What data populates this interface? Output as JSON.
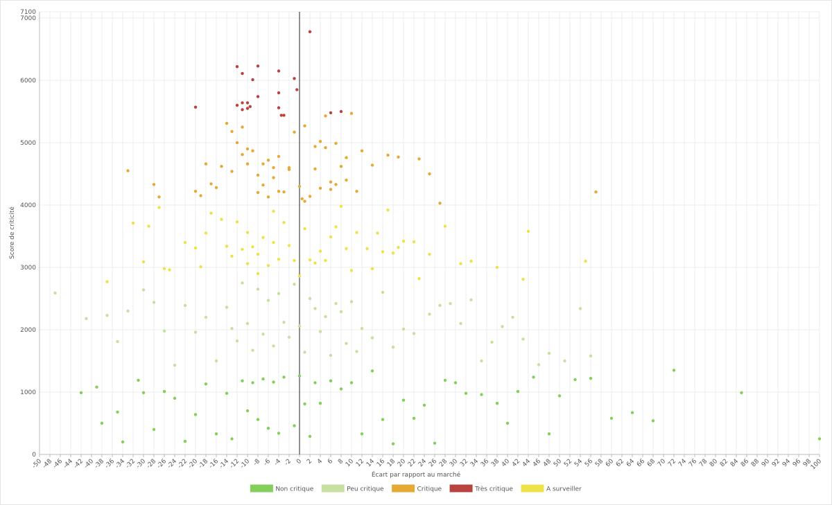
{
  "chart_data": {
    "type": "scatter",
    "x_label": "Écart par rapport au marché",
    "y_label": "Score de criticité",
    "xlim": [
      -50,
      100
    ],
    "ylim": [
      0,
      7100
    ],
    "xticks": [
      -50,
      -48,
      -46,
      -44,
      -42,
      -40,
      -38,
      -36,
      -34,
      -32,
      -30,
      -28,
      -26,
      -24,
      -22,
      -20,
      -18,
      -16,
      -14,
      -12,
      -10,
      -8,
      -6,
      -4,
      -2,
      0,
      2,
      4,
      6,
      8,
      10,
      12,
      14,
      16,
      18,
      20,
      22,
      24,
      26,
      28,
      30,
      32,
      34,
      36,
      38,
      40,
      42,
      44,
      46,
      48,
      50,
      52,
      54,
      56,
      58,
      60,
      62,
      64,
      66,
      68,
      70,
      72,
      74,
      76,
      78,
      80,
      82,
      84,
      86,
      88,
      90,
      92,
      94,
      96,
      98,
      100
    ],
    "yticks": [
      0,
      1000,
      2000,
      3000,
      4000,
      5000,
      6000,
      7000,
      7100
    ],
    "grid": true,
    "legend": "bottom",
    "series": [
      {
        "name": "Non critique",
        "color": "#84cf5c",
        "x": [
          -42,
          -39,
          -38,
          -35,
          -34,
          -31,
          -30,
          -28,
          -26,
          -24,
          -22,
          -20,
          -18,
          -16,
          -14,
          -13,
          -11,
          -10,
          -9,
          -8,
          -7,
          -6,
          -5,
          -4,
          -3,
          -1,
          0,
          1,
          2,
          3,
          4,
          6,
          8,
          10,
          12,
          14,
          16,
          18,
          20,
          22,
          24,
          26,
          28,
          30,
          32,
          35,
          38,
          40,
          42,
          45,
          48,
          50,
          53,
          56,
          60,
          64,
          68,
          72,
          85,
          100
        ],
        "values": [
          990,
          1080,
          500,
          680,
          200,
          1190,
          990,
          400,
          1010,
          900,
          210,
          640,
          1130,
          330,
          980,
          250,
          1180,
          700,
          1150,
          560,
          1210,
          420,
          1160,
          340,
          1240,
          460,
          1260,
          810,
          290,
          1150,
          820,
          1180,
          1050,
          1150,
          330,
          1340,
          560,
          170,
          870,
          580,
          790,
          180,
          1190,
          1150,
          980,
          960,
          820,
          500,
          1010,
          1240,
          330,
          940,
          1200,
          1220,
          580,
          670,
          540,
          1350,
          990,
          250
        ]
      },
      {
        "name": "Peu critique",
        "color": "#c6e0a2",
        "x": [
          -47,
          -41,
          -37,
          -35,
          -33,
          -30,
          -28,
          -26,
          -24,
          -22,
          -20,
          -18,
          -16,
          -14,
          -12,
          -11,
          -10,
          -9,
          -8,
          -7,
          -6,
          -5,
          -4,
          -3,
          -2,
          -1,
          0,
          1,
          2,
          3,
          4,
          5,
          6,
          7,
          8,
          9,
          10,
          11,
          12,
          14,
          16,
          18,
          20,
          22,
          25,
          27,
          29,
          31,
          33,
          35,
          37,
          39,
          41,
          43,
          46,
          48,
          51,
          54,
          56,
          -13
        ],
        "values": [
          2590,
          2180,
          2230,
          1810,
          2300,
          2640,
          2440,
          1980,
          1430,
          2390,
          1960,
          2200,
          1500,
          2360,
          1820,
          2750,
          2100,
          1670,
          2650,
          1930,
          2470,
          1740,
          2580,
          2120,
          1880,
          2730,
          2060,
          1640,
          2500,
          2340,
          1970,
          2210,
          1590,
          2420,
          2290,
          1780,
          2450,
          1650,
          2020,
          1870,
          2600,
          1720,
          2010,
          1940,
          2250,
          2390,
          2420,
          2100,
          2480,
          1500,
          1800,
          2050,
          2200,
          1850,
          1440,
          1620,
          1500,
          2340,
          1580,
          2020
        ]
      },
      {
        "name": "Critique",
        "color": "#e6a935",
        "x": [
          -33,
          -27,
          -28,
          -20,
          -19,
          -18,
          -17,
          -14,
          -13,
          -12,
          -11,
          -10,
          -10,
          -9,
          -8,
          -8,
          -7,
          -6,
          -5,
          -4,
          -4,
          -3,
          -2,
          -1,
          0,
          0.5,
          1,
          2,
          3,
          4,
          4,
          5,
          6,
          6,
          7,
          8,
          9,
          10,
          11,
          12,
          14,
          17,
          19,
          23,
          25,
          27,
          57,
          -15,
          -16,
          -11,
          -6,
          -2,
          3,
          5,
          9,
          -13,
          -7,
          -5,
          1,
          7
        ],
        "values": [
          4550,
          4130,
          4330,
          4220,
          4150,
          4660,
          4340,
          5310,
          4540,
          5000,
          5250,
          4900,
          4660,
          4870,
          4480,
          4200,
          4660,
          4720,
          4600,
          4220,
          4780,
          4210,
          4570,
          5170,
          4300,
          4100,
          5270,
          4140,
          4940,
          5020,
          4270,
          5430,
          4370,
          4250,
          4990,
          4620,
          4760,
          5470,
          4220,
          4870,
          4640,
          4800,
          4770,
          4740,
          4500,
          4030,
          4210,
          4620,
          4280,
          4810,
          4130,
          4600,
          4580,
          4920,
          4400,
          5180,
          4320,
          4440,
          4060,
          4330
        ]
      },
      {
        "name": "Très critique",
        "color": "#b9443f",
        "x": [
          2,
          -12,
          -11,
          -8,
          -9,
          -4,
          -1,
          -0.5,
          -4,
          -8,
          -11,
          -10,
          -10,
          -12,
          -11,
          -3.5,
          -3,
          -20,
          -4,
          6,
          8,
          -9.5
        ],
        "values": [
          6780,
          6220,
          6110,
          6230,
          6010,
          6150,
          6030,
          5850,
          5800,
          5740,
          5640,
          5640,
          5550,
          5600,
          5530,
          5440,
          5440,
          5570,
          5560,
          5480,
          5500,
          5580
        ]
      },
      {
        "name": "A surveiller",
        "color": "#ede24a",
        "x": [
          -37,
          -32,
          -30,
          -29,
          -27,
          -26,
          -25,
          -22,
          -20,
          -19,
          -18,
          -17,
          -15,
          -14,
          -13,
          -12,
          -11,
          -10,
          -10,
          -9,
          -8,
          -8,
          -7,
          -6,
          -5,
          -5,
          -4,
          -3,
          -2,
          -1,
          0,
          1,
          2,
          3,
          4,
          5,
          6,
          7,
          8,
          9,
          10,
          11,
          13,
          14,
          15,
          16,
          17,
          18,
          19,
          20,
          22,
          23,
          25,
          28,
          31,
          33,
          38,
          43,
          44,
          55
        ],
        "values": [
          2770,
          3710,
          3090,
          3660,
          3960,
          2980,
          2960,
          3400,
          3310,
          3010,
          3550,
          3870,
          3770,
          3340,
          3180,
          3730,
          3290,
          3060,
          3560,
          3330,
          3210,
          2900,
          3480,
          3030,
          3400,
          3900,
          3130,
          3720,
          3350,
          3110,
          2860,
          3620,
          3120,
          3070,
          3260,
          3110,
          3490,
          3650,
          3980,
          3300,
          2950,
          3560,
          3300,
          2980,
          3550,
          3250,
          3920,
          3230,
          3320,
          3420,
          3410,
          2820,
          3210,
          3660,
          3060,
          3100,
          3000,
          2810,
          3580,
          3100
        ]
      }
    ]
  }
}
